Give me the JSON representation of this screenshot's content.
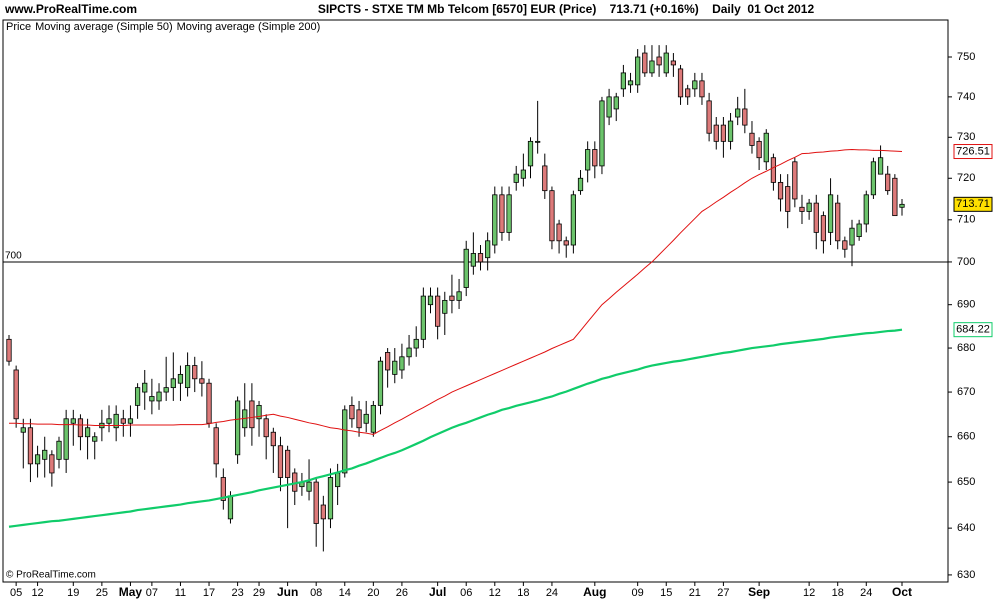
{
  "chart_data": {
    "type": "candlestick",
    "site": "www.ProRealTime.com",
    "title": "SIPCTS - STXE TM Mb Telcom [6570] EUR (Price)    713.71 (+0.16%)    Daily  01 Oct 2012",
    "copyright": "© ProRealTime.com",
    "yscale": "log",
    "ylim": [
      628.5,
      759.4
    ],
    "yticks": [
      630,
      640,
      650,
      660,
      670,
      680,
      690,
      700,
      710,
      720,
      730,
      740,
      750
    ],
    "grid": false,
    "hline": 700,
    "up_color": "#6cc46c",
    "down_color": "#dd7a7a",
    "categories": [
      null,
      "05",
      null,
      null,
      "12",
      null,
      null,
      null,
      null,
      "19",
      null,
      null,
      null,
      "25",
      null,
      null,
      null,
      "May",
      null,
      null,
      "07",
      null,
      null,
      null,
      "11",
      null,
      null,
      null,
      "17",
      null,
      null,
      null,
      "23",
      null,
      null,
      "29",
      null,
      null,
      null,
      "Jun",
      null,
      null,
      null,
      "08",
      null,
      null,
      null,
      "14",
      null,
      null,
      null,
      "20",
      null,
      null,
      null,
      "26",
      null,
      null,
      null,
      null,
      "Jul",
      null,
      null,
      null,
      "06",
      null,
      null,
      null,
      "12",
      null,
      null,
      null,
      "18",
      null,
      null,
      null,
      "24",
      null,
      null,
      null,
      null,
      null,
      "Aug",
      null,
      null,
      null,
      null,
      null,
      "09",
      null,
      null,
      null,
      "15",
      null,
      null,
      null,
      "21",
      null,
      null,
      null,
      "27",
      null,
      null,
      null,
      null,
      "Sep",
      null,
      null,
      null,
      null,
      null,
      null,
      "12",
      null,
      null,
      null,
      "18",
      null,
      null,
      null,
      "24",
      null,
      null,
      null,
      null,
      "Oct"
    ],
    "series": [
      {
        "name": "Price",
        "color": "#000000",
        "open": [
          682,
          675,
          661,
          662,
          654,
          655,
          656,
          655,
          655,
          663,
          664,
          660,
          659,
          662,
          663,
          662,
          664,
          663,
          667,
          670,
          668,
          668,
          670,
          671,
          672,
          671,
          676,
          673,
          672,
          662,
          651,
          642,
          656,
          662,
          668,
          664,
          664,
          661,
          658,
          657,
          652,
          649,
          648,
          650,
          645,
          642,
          649,
          652,
          667,
          666,
          663,
          661,
          667,
          679,
          674,
          675,
          678,
          680,
          682,
          690,
          692,
          688,
          692,
          691,
          694,
          699,
          702,
          701,
          704,
          716,
          707,
          719,
          720,
          723,
          729,
          723,
          717,
          709,
          705,
          704,
          717,
          722,
          727,
          723,
          735,
          737,
          742,
          743,
          743,
          751,
          746,
          750,
          746,
          749,
          747,
          742,
          742,
          744,
          739,
          733,
          733,
          729,
          735,
          737,
          731,
          729,
          724,
          725,
          719,
          718,
          724,
          713,
          712,
          714,
          711,
          707,
          714,
          705,
          704,
          706,
          709,
          716,
          721,
          721,
          720,
          713
        ],
        "high": [
          683,
          676,
          664,
          664,
          658,
          660,
          657,
          660,
          666,
          666,
          665,
          664,
          661,
          666,
          667,
          667,
          666,
          667,
          672,
          675,
          673,
          672,
          678,
          679,
          676,
          679,
          678,
          677,
          673,
          663,
          653,
          648,
          669,
          672,
          672,
          668,
          665,
          662,
          660,
          658,
          653,
          652,
          655,
          651,
          647,
          653,
          654,
          667,
          669,
          668,
          668,
          668,
          678,
          680,
          680,
          681,
          683,
          685,
          694,
          694,
          694,
          693,
          697,
          696,
          705,
          707,
          704,
          707,
          718,
          718,
          718,
          723,
          726,
          730,
          739,
          726,
          718,
          710,
          706,
          717,
          722,
          729,
          729,
          740,
          742,
          741,
          748,
          746,
          752,
          753,
          753,
          753,
          753,
          751,
          748,
          743,
          746,
          746,
          741,
          735,
          735,
          736,
          740,
          742,
          734,
          730,
          732,
          726,
          721,
          721,
          725,
          716,
          715,
          716,
          712,
          720,
          716,
          706,
          710,
          710,
          717,
          725,
          728,
          723,
          721,
          715
        ],
        "low": [
          676,
          662,
          653,
          650,
          651,
          651,
          649,
          653,
          652,
          658,
          657,
          655,
          655,
          659,
          661,
          659,
          660,
          660,
          664,
          666,
          665,
          666,
          668,
          668,
          668,
          669,
          670,
          669,
          662,
          651,
          644,
          641,
          654,
          660,
          658,
          660,
          655,
          652,
          648,
          640,
          645,
          647,
          646,
          636,
          635,
          640,
          645,
          651,
          662,
          660,
          661,
          660,
          665,
          671,
          672,
          673,
          676,
          678,
          680,
          688,
          682,
          683,
          688,
          689,
          692,
          697,
          698,
          698,
          702,
          705,
          705,
          717,
          718,
          720,
          726,
          715,
          703,
          702,
          701,
          702,
          716,
          719,
          720,
          721,
          733,
          734,
          740,
          741,
          741,
          745,
          745,
          745,
          745,
          745,
          738,
          738,
          740,
          738,
          729,
          727,
          725,
          727,
          733,
          731,
          726,
          722,
          722,
          717,
          712,
          708,
          713,
          709,
          710,
          703,
          702,
          704,
          703,
          701,
          699,
          705,
          707,
          715,
          721,
          716,
          711,
          711
        ],
        "close": [
          677,
          664,
          662,
          654,
          656,
          657,
          652,
          659,
          664,
          664,
          660,
          662,
          660,
          663,
          664,
          665,
          663,
          664,
          671,
          672,
          669,
          670,
          671,
          673,
          674,
          676,
          673,
          672,
          663,
          654,
          646,
          647,
          668,
          666,
          662,
          667,
          660,
          658,
          651,
          651,
          648,
          650,
          650,
          641,
          642,
          651,
          652,
          666,
          664,
          662,
          665,
          667,
          677,
          675,
          677,
          678,
          680,
          682,
          692,
          692,
          685,
          691,
          691,
          693,
          703,
          702,
          700,
          705,
          716,
          707,
          716,
          721,
          722,
          729,
          729,
          717,
          705,
          705,
          704,
          716,
          720,
          727,
          723,
          739,
          740,
          740,
          746,
          744,
          750,
          746,
          749,
          748,
          751,
          748,
          740,
          740,
          744,
          740,
          731,
          729,
          729,
          734,
          737,
          733,
          728,
          725,
          731,
          719,
          715,
          712,
          715,
          712,
          714,
          707,
          705,
          716,
          705,
          703,
          708,
          709,
          716,
          724,
          725,
          717,
          711,
          713.71
        ]
      },
      {
        "name": "Moving average (Simple 50)",
        "color": "#e01010",
        "values": [
          663,
          663,
          662.9,
          662.9,
          662.8,
          662.8,
          662.8,
          662.7,
          662.7,
          662.7,
          662.6,
          662.6,
          662.5,
          662.5,
          662.5,
          662.5,
          662.5,
          662.6,
          662.6,
          662.6,
          662.6,
          662.6,
          662.6,
          662.6,
          662.7,
          662.7,
          662.7,
          662.7,
          662.9,
          663.2,
          663.4,
          663.7,
          663.9,
          664.1,
          664.3,
          664.5,
          664.8,
          665,
          664.6,
          664.3,
          663.9,
          663.5,
          663.1,
          662.8,
          662.4,
          662,
          661.8,
          661.5,
          661.3,
          661,
          660.8,
          660.5,
          661.4,
          662.2,
          663.1,
          663.9,
          664.8,
          665.7,
          666.5,
          667.4,
          668.3,
          669.1,
          670,
          670.7,
          671.4,
          672.1,
          672.8,
          673.5,
          674.2,
          674.9,
          675.6,
          676.3,
          677,
          677.7,
          678.4,
          679.1,
          679.9,
          680.6,
          681.3,
          682,
          684,
          686,
          688,
          690,
          691.4,
          692.9,
          694.3,
          695.7,
          697.1,
          698.6,
          700,
          701.7,
          703.4,
          705.1,
          706.9,
          708.6,
          710.3,
          712,
          713.1,
          714.3,
          715.4,
          716.6,
          717.7,
          718.9,
          720,
          720.9,
          721.7,
          722.6,
          723.4,
          724.3,
          725.1,
          726,
          726.1,
          726.3,
          726.4,
          726.6,
          726.7,
          726.9,
          727,
          726.9,
          726.9,
          726.8,
          726.8,
          726.7,
          726.6,
          726.51
        ]
      },
      {
        "name": "Moving average (Simple 200)",
        "color": "#10cc6a",
        "values": [
          640.3,
          640.5,
          640.7,
          640.9,
          641.1,
          641.3,
          641.5,
          641.6,
          641.8,
          642,
          642.2,
          642.4,
          642.6,
          642.8,
          643,
          643.2,
          643.4,
          643.6,
          643.9,
          644.1,
          644.3,
          644.5,
          644.7,
          644.9,
          645.1,
          645.4,
          645.6,
          645.8,
          646,
          646.3,
          646.6,
          646.9,
          647.2,
          647.5,
          647.8,
          648.2,
          648.5,
          648.8,
          649.1,
          649.4,
          649.7,
          650,
          650.4,
          650.9,
          651.3,
          651.7,
          652.1,
          652.6,
          653,
          653.6,
          654.1,
          654.7,
          655.3,
          655.9,
          656.4,
          657,
          657.7,
          658.4,
          659.1,
          659.9,
          660.6,
          661.3,
          662,
          662.6,
          663.1,
          663.7,
          664.3,
          664.9,
          665.4,
          666,
          666.4,
          666.9,
          667.3,
          667.7,
          668.1,
          668.6,
          669,
          669.6,
          670.1,
          670.7,
          671.3,
          671.9,
          672.4,
          673,
          673.4,
          673.9,
          674.3,
          674.7,
          675.1,
          675.6,
          676,
          676.3,
          676.6,
          676.9,
          677.1,
          677.4,
          677.7,
          678,
          678.3,
          678.6,
          678.9,
          679.1,
          679.4,
          679.7,
          680,
          680.2,
          680.4,
          680.6,
          680.9,
          681.1,
          681.3,
          681.5,
          681.7,
          681.9,
          682.1,
          682.4,
          682.6,
          682.8,
          683,
          683.2,
          683.4,
          683.5,
          683.7,
          683.9,
          684,
          684.22
        ]
      }
    ]
  }
}
